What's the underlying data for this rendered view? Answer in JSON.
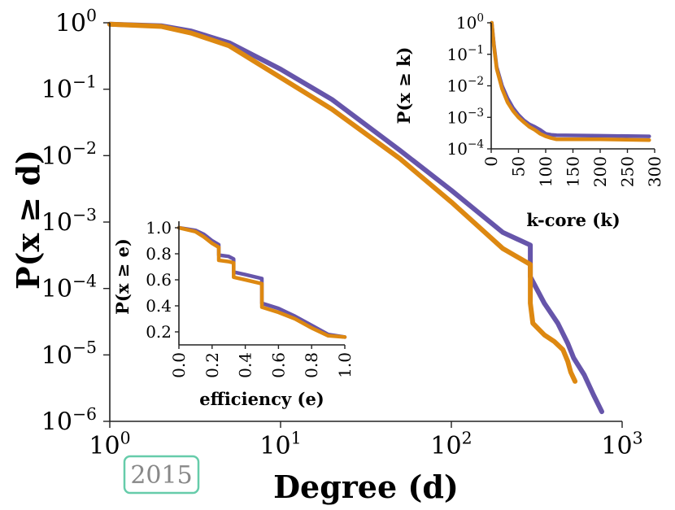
{
  "badge": {
    "label": "2015"
  },
  "chart_data": [
    {
      "id": "main",
      "type": "line",
      "xscale": "log",
      "yscale": "log",
      "xlim": [
        1,
        1000
      ],
      "ylim": [
        1e-06,
        1
      ],
      "xlabel": "Degree (d)",
      "ylabel": "P(x ≥ d)",
      "xticks": [
        {
          "base": "10",
          "exp": "0",
          "value": 1
        },
        {
          "base": "10",
          "exp": "1",
          "value": 10
        },
        {
          "base": "10",
          "exp": "2",
          "value": 100
        },
        {
          "base": "10",
          "exp": "3",
          "value": 1000
        }
      ],
      "yticks": [
        {
          "base": "10",
          "exp": "0",
          "value": 1
        },
        {
          "base": "10",
          "exp": "−1",
          "value": 0.1
        },
        {
          "base": "10",
          "exp": "−2",
          "value": 0.01
        },
        {
          "base": "10",
          "exp": "−3",
          "value": 0.001
        },
        {
          "base": "10",
          "exp": "−4",
          "value": 0.0001
        },
        {
          "base": "10",
          "exp": "−5",
          "value": 1e-05
        },
        {
          "base": "10",
          "exp": "−6",
          "value": 1e-06
        }
      ],
      "series": [
        {
          "name": "purple",
          "color": "#6655aa",
          "x": [
            1,
            2,
            3,
            5,
            10,
            20,
            50,
            100,
            200,
            290,
            290,
            350,
            420,
            480,
            520,
            600,
            680,
            760
          ],
          "y": [
            0.95,
            0.9,
            0.75,
            0.5,
            0.2,
            0.07,
            0.012,
            0.003,
            0.0007,
            0.00045,
            0.00015,
            6e-05,
            3e-05,
            1.5e-05,
            9e-06,
            5e-06,
            2.5e-06,
            1.4e-06
          ]
        },
        {
          "name": "orange",
          "color": "#dd8811",
          "x": [
            1,
            2,
            3,
            5,
            10,
            20,
            50,
            100,
            200,
            290,
            290,
            300,
            350,
            400,
            450,
            480,
            500,
            530
          ],
          "y": [
            0.95,
            0.88,
            0.7,
            0.45,
            0.15,
            0.05,
            0.009,
            0.002,
            0.0004,
            0.00023,
            6e-05,
            3e-05,
            2e-05,
            1.6e-05,
            1.2e-05,
            8e-06,
            5.5e-06,
            4e-06
          ]
        }
      ]
    },
    {
      "id": "inset_kcore",
      "type": "line",
      "xscale": "linear",
      "yscale": "log",
      "xlim": [
        0,
        300
      ],
      "ylim": [
        0.0001,
        1
      ],
      "xlabel": "k-core (k)",
      "ylabel": "P(x ≥ k)",
      "xticks": [
        {
          "label": "0",
          "value": 0
        },
        {
          "label": "50",
          "value": 50
        },
        {
          "label": "100",
          "value": 100
        },
        {
          "label": "150",
          "value": 150
        },
        {
          "label": "200",
          "value": 200
        },
        {
          "label": "250",
          "value": 250
        },
        {
          "label": "300",
          "value": 300
        }
      ],
      "yticks": [
        {
          "base": "10",
          "exp": "0",
          "value": 1
        },
        {
          "base": "10",
          "exp": "−1",
          "value": 0.1
        },
        {
          "base": "10",
          "exp": "−2",
          "value": 0.01
        },
        {
          "base": "10",
          "exp": "−3",
          "value": 0.001
        },
        {
          "base": "10",
          "exp": "−4",
          "value": 0.0001
        }
      ],
      "series": [
        {
          "name": "purple",
          "color": "#6655aa",
          "x": [
            1,
            5,
            10,
            20,
            30,
            40,
            50,
            60,
            70,
            80,
            90,
            100,
            110,
            120,
            200,
            290
          ],
          "y": [
            1,
            0.2,
            0.04,
            0.01,
            0.004,
            0.002,
            0.0012,
            0.0008,
            0.0006,
            0.0005,
            0.0004,
            0.0003,
            0.00028,
            0.00027,
            0.00026,
            0.00025
          ]
        },
        {
          "name": "orange",
          "color": "#dd8811",
          "x": [
            1,
            5,
            10,
            20,
            30,
            40,
            50,
            60,
            70,
            80,
            90,
            100,
            110,
            120,
            200,
            290
          ],
          "y": [
            1,
            0.18,
            0.035,
            0.008,
            0.003,
            0.0016,
            0.001,
            0.0007,
            0.0005,
            0.0004,
            0.0003,
            0.00025,
            0.00022,
            0.0002,
            0.0002,
            0.00019
          ]
        }
      ]
    },
    {
      "id": "inset_efficiency",
      "type": "line",
      "xscale": "linear",
      "yscale": "linear",
      "xlim": [
        0,
        1
      ],
      "ylim": [
        0.1,
        1.05
      ],
      "xlabel": "efficiency (e)",
      "ylabel": "P(x ≥ e)",
      "xticks": [
        {
          "label": "0.0",
          "value": 0
        },
        {
          "label": "0.2",
          "value": 0.2
        },
        {
          "label": "0.4",
          "value": 0.4
        },
        {
          "label": "0.6",
          "value": 0.6
        },
        {
          "label": "0.8",
          "value": 0.8
        },
        {
          "label": "1.0",
          "value": 1
        }
      ],
      "yticks": [
        {
          "label": "1.0",
          "value": 1
        },
        {
          "label": "0.8",
          "value": 0.8
        },
        {
          "label": "0.6",
          "value": 0.6
        },
        {
          "label": "0.4",
          "value": 0.4
        },
        {
          "label": "0.2",
          "value": 0.2
        }
      ],
      "series": [
        {
          "name": "purple",
          "color": "#6655aa",
          "x": [
            0,
            0.1,
            0.15,
            0.2,
            0.24,
            0.24,
            0.3,
            0.33,
            0.33,
            0.4,
            0.5,
            0.5,
            0.6,
            0.7,
            0.8,
            0.9,
            1.0
          ],
          "y": [
            1.0,
            0.98,
            0.95,
            0.9,
            0.87,
            0.79,
            0.78,
            0.76,
            0.66,
            0.64,
            0.61,
            0.42,
            0.38,
            0.32,
            0.25,
            0.18,
            0.16
          ]
        },
        {
          "name": "orange",
          "color": "#dd8811",
          "x": [
            0,
            0.1,
            0.15,
            0.2,
            0.24,
            0.24,
            0.3,
            0.33,
            0.33,
            0.4,
            0.5,
            0.5,
            0.6,
            0.7,
            0.8,
            0.9,
            1.0
          ],
          "y": [
            1.0,
            0.97,
            0.93,
            0.88,
            0.85,
            0.75,
            0.74,
            0.73,
            0.62,
            0.6,
            0.57,
            0.39,
            0.35,
            0.3,
            0.23,
            0.17,
            0.16
          ]
        }
      ]
    }
  ]
}
